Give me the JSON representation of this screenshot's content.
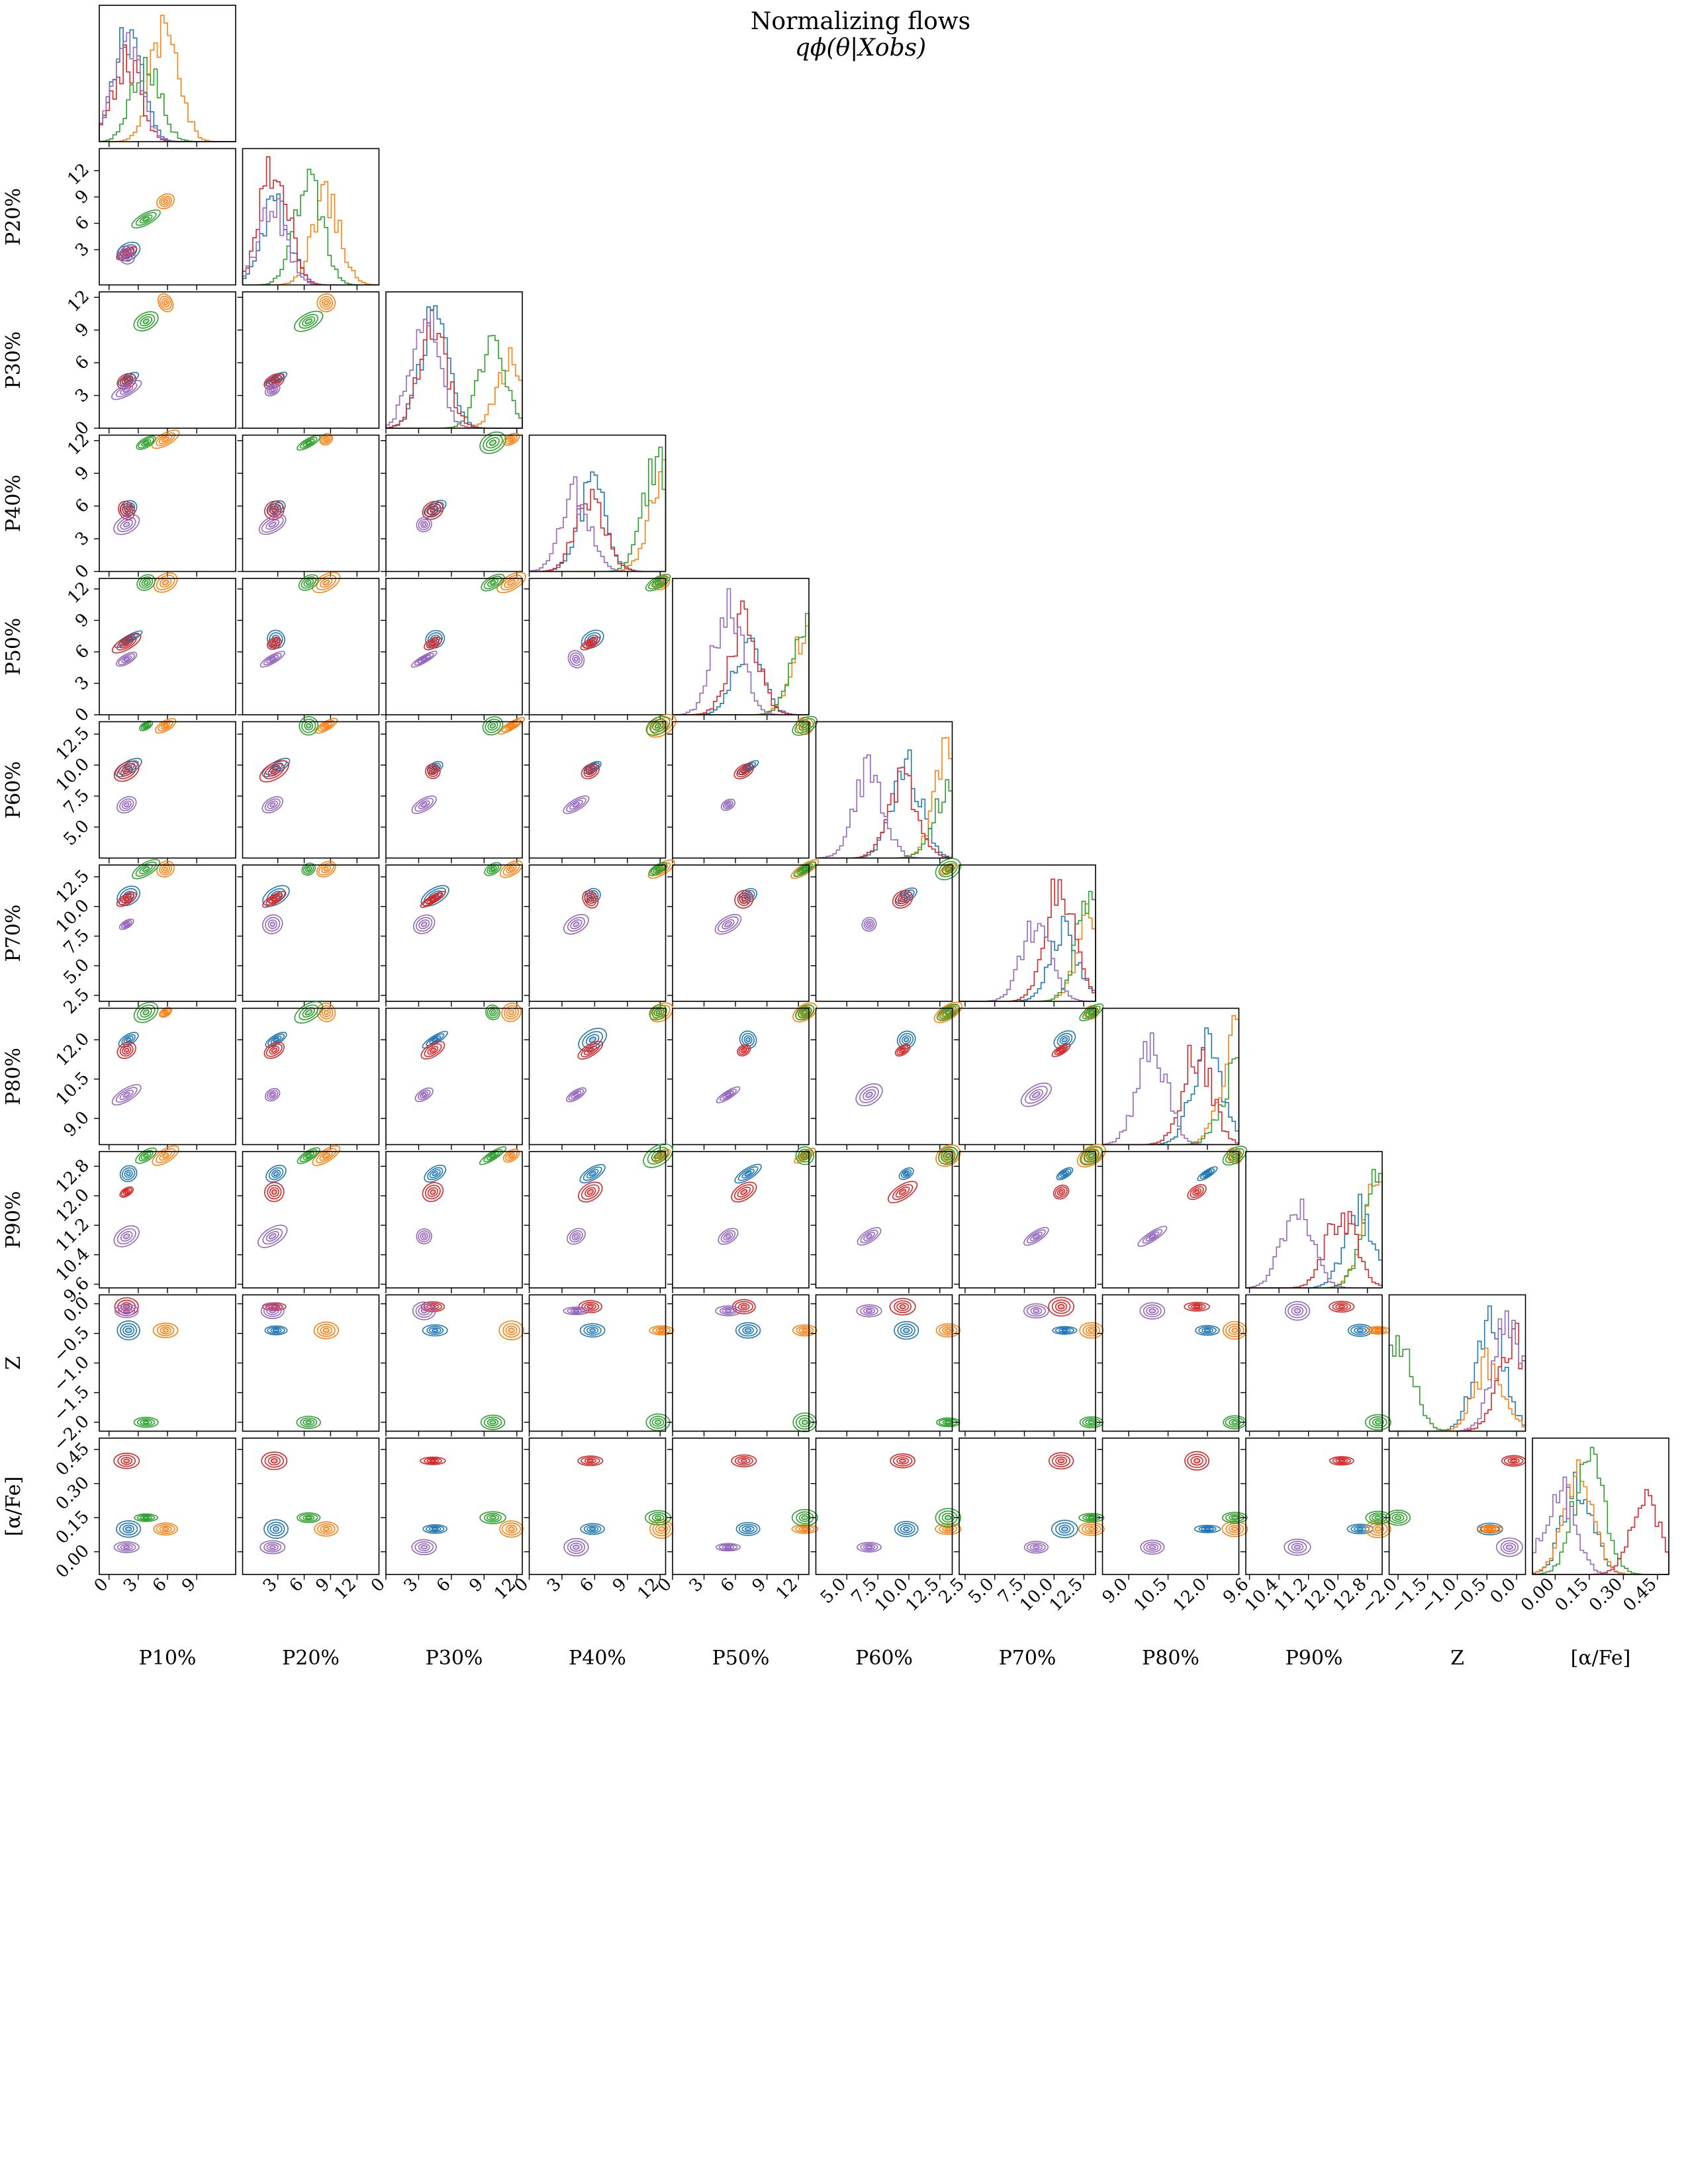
{
  "title": "Normalizing flows",
  "subtitle": "qϕ(θ|Xobs)",
  "chart_data": {
    "type": "scatter",
    "subtype": "corner-plot",
    "grid": false,
    "parameters": [
      "P10%",
      "P20%",
      "P30%",
      "P40%",
      "P50%",
      "P60%",
      "P70%",
      "P80%",
      "P90%",
      "Z",
      "[α/Fe]"
    ],
    "row_labels": [
      "",
      "P20%",
      "P30%",
      "P40%",
      "P50%",
      "P60%",
      "P70%",
      "P80%",
      "P90%",
      "Z",
      "[α/Fe]"
    ],
    "ranges": [
      [
        -1,
        13
      ],
      [
        -1,
        14.5
      ],
      [
        0,
        12.5
      ],
      [
        0,
        12.5
      ],
      [
        0,
        13
      ],
      [
        2.5,
        13.5
      ],
      [
        2,
        13.5
      ],
      [
        8,
        13.2
      ],
      [
        9.5,
        13.2
      ],
      [
        -2.15,
        0.15
      ],
      [
        -0.1,
        0.5
      ]
    ],
    "tick_labels": [
      [
        "0",
        "3",
        "6",
        "9"
      ],
      [
        "3",
        "6",
        "9",
        "12"
      ],
      [
        "0",
        "3",
        "6",
        "9",
        "12"
      ],
      [
        "0",
        "3",
        "6",
        "9",
        "12"
      ],
      [
        "0",
        "3",
        "6",
        "9",
        "12"
      ],
      [
        "5.0",
        "7.5",
        "10.0",
        "12.5"
      ],
      [
        "2.5",
        "5.0",
        "7.5",
        "10.0",
        "12.5"
      ],
      [
        "9.0",
        "10.5",
        "12.0"
      ],
      [
        "9.6",
        "10.4",
        "11.2",
        "12.0",
        "12.8"
      ],
      [
        "−2.0",
        "−1.5",
        "−1.0",
        "−0.5",
        "0.0"
      ],
      [
        "0.00",
        "0.15",
        "0.30",
        "0.45"
      ]
    ],
    "tick_values": [
      [
        0,
        3,
        6,
        9
      ],
      [
        3,
        6,
        9,
        12
      ],
      [
        0,
        3,
        6,
        9,
        12
      ],
      [
        0,
        3,
        6,
        9,
        12
      ],
      [
        0,
        3,
        6,
        9,
        12
      ],
      [
        5,
        7.5,
        10,
        12.5
      ],
      [
        2.5,
        5,
        7.5,
        10,
        12.5
      ],
      [
        9,
        10.5,
        12
      ],
      [
        9.6,
        10.4,
        11.2,
        12,
        12.8
      ],
      [
        -2,
        -1.5,
        -1,
        -0.5,
        0
      ],
      [
        0,
        0.15,
        0.3,
        0.45
      ]
    ],
    "series": [
      {
        "color": "#1f77b4",
        "means": [
          2.0,
          2.8,
          4.5,
          5.8,
          7.2,
          9.8,
          10.9,
          12.0,
          12.6,
          -0.45,
          0.1
        ]
      },
      {
        "color": "#ff7f0e",
        "means": [
          5.8,
          8.5,
          11.5,
          12.4,
          12.9,
          13.3,
          13.4,
          13.1,
          13.1,
          -0.45,
          0.1
        ]
      },
      {
        "color": "#2ca02c",
        "means": [
          3.8,
          6.5,
          9.8,
          11.8,
          12.8,
          13.2,
          13.3,
          13.1,
          13.1,
          -2.0,
          0.15
        ]
      },
      {
        "color": "#d62728",
        "means": [
          1.8,
          2.6,
          4.3,
          5.6,
          6.8,
          9.5,
          10.6,
          11.6,
          12.1,
          -0.05,
          0.4
        ]
      },
      {
        "color": "#9467bd",
        "means": [
          1.8,
          2.4,
          3.5,
          4.3,
          5.3,
          6.8,
          8.5,
          9.9,
          10.9,
          -0.12,
          0.02
        ]
      }
    ]
  }
}
